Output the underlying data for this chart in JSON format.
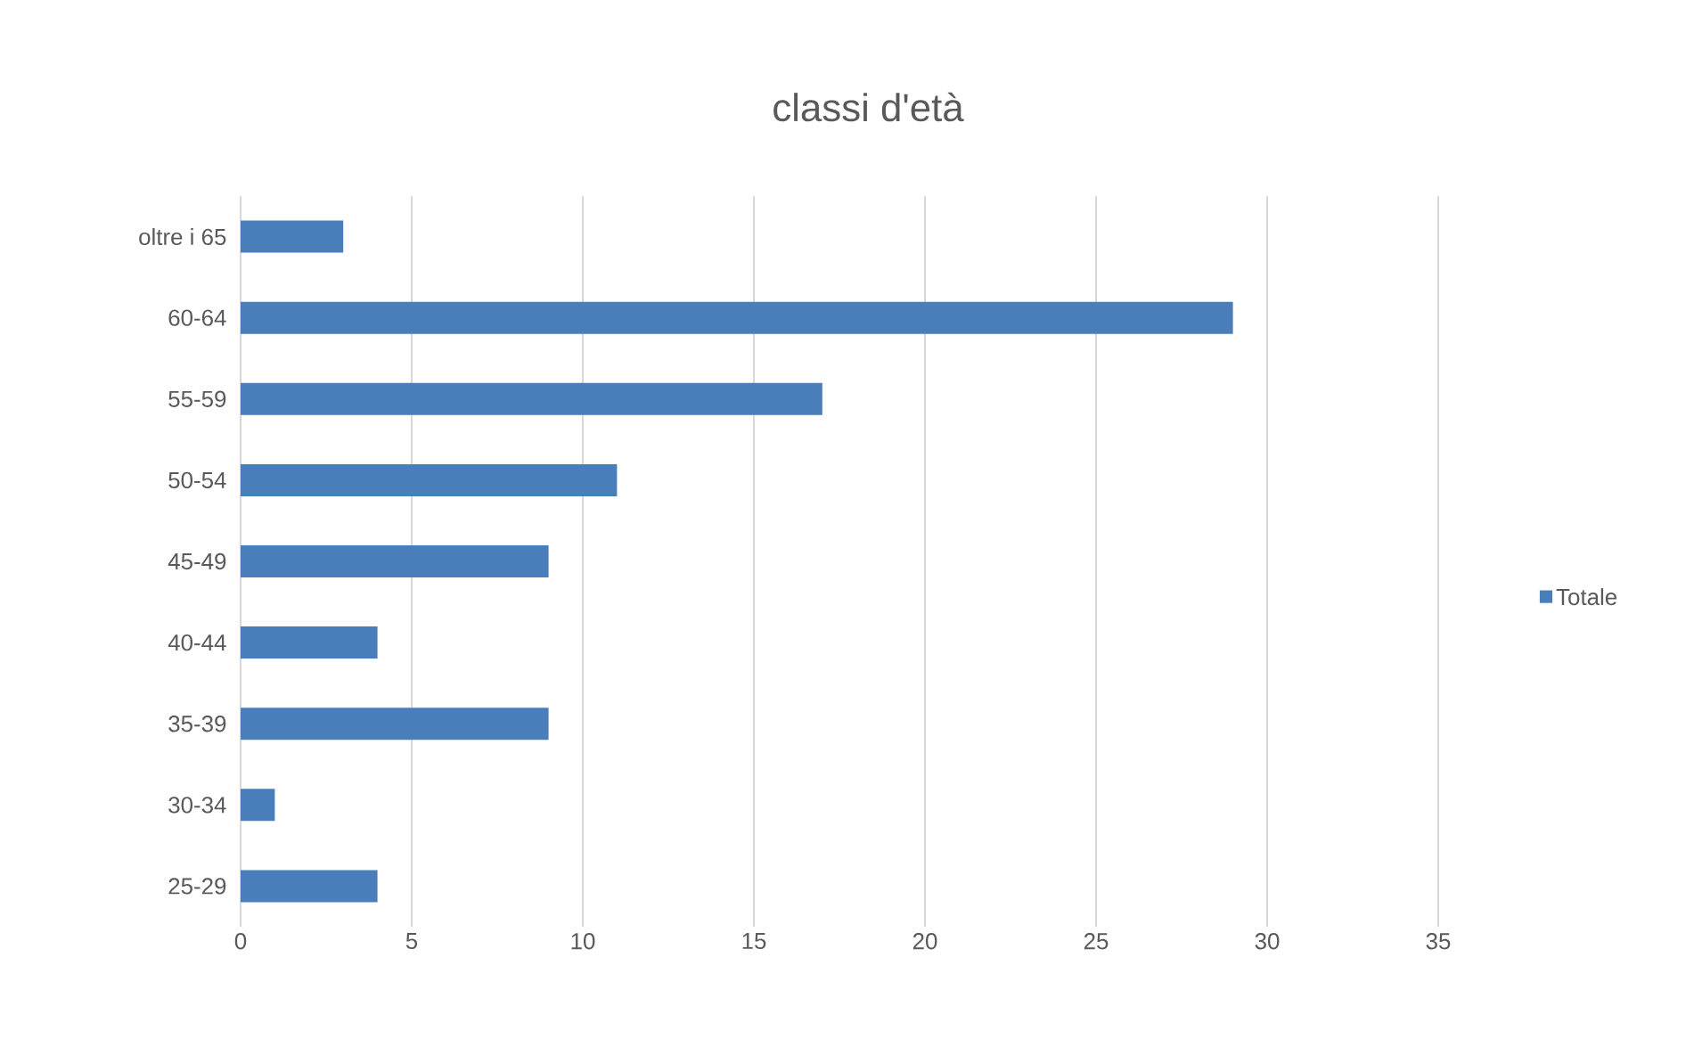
{
  "chart_data": {
    "type": "bar",
    "orientation": "horizontal",
    "title": "classi d'età",
    "categories": [
      "oltre i 65",
      "60-64",
      "55-59",
      "50-54",
      "45-49",
      "40-44",
      "35-39",
      "30-34",
      "25-29"
    ],
    "series": [
      {
        "name": "Totale",
        "color": "#4a7ebb",
        "values": [
          3,
          29,
          17,
          11,
          9,
          4,
          9,
          1,
          4
        ]
      }
    ],
    "xlim": [
      0,
      35
    ],
    "xticks": [
      0,
      5,
      10,
      15,
      20,
      25,
      30,
      35
    ],
    "grid": "x",
    "legend": "right"
  }
}
